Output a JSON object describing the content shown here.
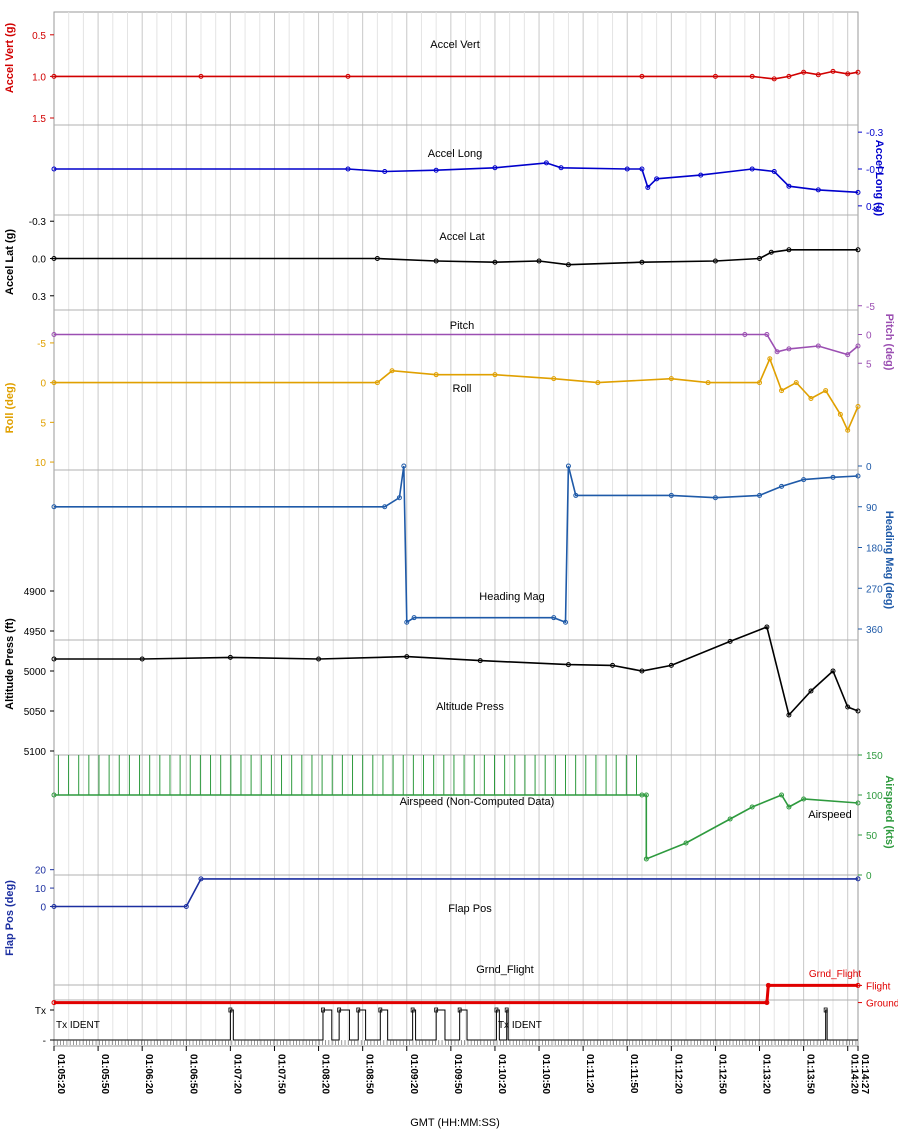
{
  "chart_data": {
    "type": "line",
    "xlabel": "GMT (HH:MM:SS)",
    "x_ticks": [
      "01:05:20",
      "01:05:50",
      "01:06:20",
      "01:06:50",
      "01:07:20",
      "01:07:50",
      "01:08:20",
      "01:08:50",
      "01:09:20",
      "01:09:50",
      "01:10:20",
      "01:10:50",
      "01:11:20",
      "01:11:50",
      "01:12:20",
      "01:12:50",
      "01:13:20",
      "01:13:50",
      "01:14:20",
      "01:14:27"
    ],
    "x_range_seconds_from_tick0": [
      0,
      547
    ],
    "grid": true,
    "panels": [
      {
        "name": "Accel Vert",
        "title": "Accel Vert",
        "axis_label": "Accel Vert (g)",
        "axis_side": "left",
        "color": "#d10000",
        "ylim": [
          0.25,
          1.5
        ],
        "ticks": [
          "1.5",
          "1.0",
          "0.5"
        ],
        "tick_values": [
          1.5,
          1.0,
          0.5
        ],
        "points": [
          [
            0,
            1.0
          ],
          [
            100,
            1.0
          ],
          [
            200,
            1.0
          ],
          [
            400,
            1.0
          ],
          [
            450,
            1.0
          ],
          [
            475,
            1.0
          ],
          [
            490,
            1.03
          ],
          [
            500,
            1.0
          ],
          [
            510,
            0.95
          ],
          [
            520,
            0.98
          ],
          [
            530,
            0.94
          ],
          [
            540,
            0.97
          ],
          [
            547,
            0.95
          ]
        ]
      },
      {
        "name": "Accel Long",
        "title": "Accel Long",
        "axis_label": "Accel Long (g)",
        "axis_side": "right",
        "color": "#0000cc",
        "ylim": [
          -0.35,
          0.35
        ],
        "ticks": [
          "0.3",
          "-0.0",
          "-0.3"
        ],
        "tick_values": [
          0.3,
          0.0,
          -0.3
        ],
        "points": [
          [
            0,
            0.0
          ],
          [
            200,
            0.0
          ],
          [
            225,
            0.02
          ],
          [
            260,
            0.01
          ],
          [
            300,
            -0.01
          ],
          [
            335,
            -0.05
          ],
          [
            345,
            -0.01
          ],
          [
            390,
            0.0
          ],
          [
            400,
            0.0
          ],
          [
            404,
            0.15
          ],
          [
            410,
            0.08
          ],
          [
            440,
            0.05
          ],
          [
            475,
            0.0
          ],
          [
            490,
            0.02
          ],
          [
            500,
            0.14
          ],
          [
            520,
            0.17
          ],
          [
            547,
            0.19
          ]
        ]
      },
      {
        "name": "Accel Lat",
        "title": "Accel Lat",
        "axis_label": "Accel Lat (g)",
        "axis_side": "left",
        "color": "#000000",
        "ylim": [
          -0.35,
          0.35
        ],
        "ticks": [
          "0.3",
          "0.0",
          "-0.3"
        ],
        "tick_values": [
          0.3,
          0.0,
          -0.3
        ],
        "points": [
          [
            0,
            0.0
          ],
          [
            220,
            0.0
          ],
          [
            260,
            0.02
          ],
          [
            300,
            0.03
          ],
          [
            330,
            0.02
          ],
          [
            350,
            0.05
          ],
          [
            400,
            0.03
          ],
          [
            450,
            0.02
          ],
          [
            480,
            0.0
          ],
          [
            488,
            -0.05
          ],
          [
            500,
            -0.07
          ],
          [
            547,
            -0.07
          ]
        ]
      },
      {
        "name": "Pitch",
        "title": "Pitch",
        "axis_label": "Pitch (deg)",
        "axis_side": "right",
        "color": "#9b4fb2",
        "ylim": [
          -6,
          6
        ],
        "ticks": [
          "5",
          "0",
          "-5"
        ],
        "tick_values": [
          5,
          0,
          -5
        ],
        "points": [
          [
            0,
            0.0
          ],
          [
            470,
            0.0
          ],
          [
            485,
            0.0
          ],
          [
            492,
            3.0
          ],
          [
            500,
            2.5
          ],
          [
            520,
            2.0
          ],
          [
            540,
            3.5
          ],
          [
            547,
            2.0
          ]
        ]
      },
      {
        "name": "Roll",
        "title": "Roll",
        "axis_label": "Roll (deg)",
        "axis_side": "left",
        "color": "#e0a000",
        "ylim": [
          -6.5,
          11
        ],
        "ticks": [
          "-5",
          "0",
          "5",
          "10"
        ],
        "tick_values": [
          -5,
          0,
          5,
          10
        ],
        "inverted": true,
        "points": [
          [
            0,
            0.0
          ],
          [
            220,
            0.0
          ],
          [
            230,
            -1.5
          ],
          [
            260,
            -1.0
          ],
          [
            300,
            -1.0
          ],
          [
            340,
            -0.5
          ],
          [
            370,
            0.0
          ],
          [
            420,
            -0.5
          ],
          [
            445,
            0.0
          ],
          [
            480,
            0.0
          ],
          [
            487,
            -3.0
          ],
          [
            495,
            1.0
          ],
          [
            505,
            0.0
          ],
          [
            515,
            2.0
          ],
          [
            525,
            1.0
          ],
          [
            535,
            4.0
          ],
          [
            540,
            6.0
          ],
          [
            547,
            3.0
          ]
        ]
      },
      {
        "name": "Heading Mag",
        "title": "Heading Mag",
        "axis_label": "Heading Mag (deg)",
        "axis_side": "right",
        "color": "#1f5aa8",
        "ylim": [
          0,
          360
        ],
        "ticks": [
          "0",
          "90",
          "180",
          "270",
          "360"
        ],
        "tick_values": [
          0,
          90,
          180,
          270,
          360
        ],
        "inverted": true,
        "points": [
          [
            0,
            90
          ],
          [
            225,
            90
          ],
          [
            235,
            70
          ],
          [
            238,
            0
          ],
          [
            240,
            345
          ],
          [
            245,
            335
          ],
          [
            340,
            335
          ],
          [
            348,
            345
          ],
          [
            350,
            0
          ],
          [
            355,
            65
          ],
          [
            420,
            65
          ],
          [
            450,
            70
          ],
          [
            480,
            65
          ],
          [
            495,
            45
          ],
          [
            510,
            30
          ],
          [
            530,
            25
          ],
          [
            547,
            22
          ]
        ]
      },
      {
        "name": "Altitude Press",
        "title": "Altitude Press",
        "axis_label": "Altitude Press (ft)",
        "axis_side": "left",
        "color": "#000000",
        "ylim": [
          4895,
          5115
        ],
        "ticks": [
          "5100",
          "5050",
          "5000",
          "4950",
          "4900"
        ],
        "tick_values": [
          5100,
          5050,
          5000,
          4950,
          4900
        ],
        "points": [
          [
            0,
            4985
          ],
          [
            60,
            4985
          ],
          [
            120,
            4983
          ],
          [
            180,
            4985
          ],
          [
            240,
            4982
          ],
          [
            290,
            4987
          ],
          [
            350,
            4992
          ],
          [
            380,
            4993
          ],
          [
            400,
            5000
          ],
          [
            420,
            4993
          ],
          [
            460,
            4963
          ],
          [
            485,
            4945
          ],
          [
            500,
            5055
          ],
          [
            515,
            5025
          ],
          [
            530,
            5000
          ],
          [
            540,
            5045
          ],
          [
            547,
            5050
          ]
        ]
      },
      {
        "name": "Airspeed (Non-Computed Data)",
        "title": "Airspeed (Non-Computed Data)",
        "series_label": "Airspeed",
        "axis_label": "Airspeed (kts)",
        "axis_side": "right",
        "color": "#2e9a3e",
        "ylim": [
          0,
          150
        ],
        "ticks": [
          "150",
          "100",
          "50",
          "0"
        ],
        "tick_values": [
          150,
          100,
          50,
          0
        ],
        "points": [
          [
            0,
            100
          ],
          [
            400,
            100
          ],
          [
            403,
            100
          ],
          [
            403,
            20
          ],
          [
            430,
            40
          ],
          [
            460,
            70
          ],
          [
            475,
            85
          ],
          [
            495,
            100
          ],
          [
            500,
            85
          ],
          [
            510,
            95
          ],
          [
            547,
            90
          ]
        ]
      },
      {
        "name": "Flap Pos",
        "title": "Flap Pos",
        "axis_label": "Flap Pos (deg)",
        "axis_side": "left",
        "color": "#1c2fa0",
        "ylim": [
          -3,
          22
        ],
        "ticks": [
          "20",
          "10",
          "0"
        ],
        "tick_values": [
          20,
          10,
          0
        ],
        "points": [
          [
            0,
            0
          ],
          [
            90,
            0
          ],
          [
            100,
            15
          ],
          [
            547,
            15
          ]
        ]
      },
      {
        "name": "Grnd_Flight",
        "title": "Grnd_Flight",
        "axis_label": "",
        "axis_side": "right",
        "color": "#e00000",
        "ylim": [
          -0.2,
          1.2
        ],
        "ticks": [
          "Flight",
          "Ground"
        ],
        "tick_values": [
          1,
          0
        ],
        "points": [
          [
            0,
            0
          ],
          [
            485,
            0
          ],
          [
            486,
            1
          ],
          [
            547,
            1
          ]
        ]
      },
      {
        "name": "Tx IDENT",
        "title": "Tx IDENT",
        "axis_label": "",
        "axis_side": "left",
        "color": "#000000",
        "ylim": [
          0,
          1
        ],
        "ticks": [
          "Tx",
          "-"
        ],
        "tick_values": [
          1,
          0
        ],
        "pulses": [
          [
            120,
            122
          ],
          [
            183,
            189
          ],
          [
            194,
            201
          ],
          [
            207,
            212
          ],
          [
            222,
            227
          ],
          [
            244,
            246
          ],
          [
            260,
            266
          ],
          [
            276,
            281
          ],
          [
            301,
            303
          ],
          [
            308,
            309
          ],
          [
            525,
            526
          ]
        ]
      }
    ]
  },
  "annotations": {
    "tx_ident_left": "Tx IDENT",
    "tx_ident_mid": "Tx IDENT",
    "airspeed_label": "Airspeed",
    "grnd_flight_side": "Grnd_Flight"
  }
}
